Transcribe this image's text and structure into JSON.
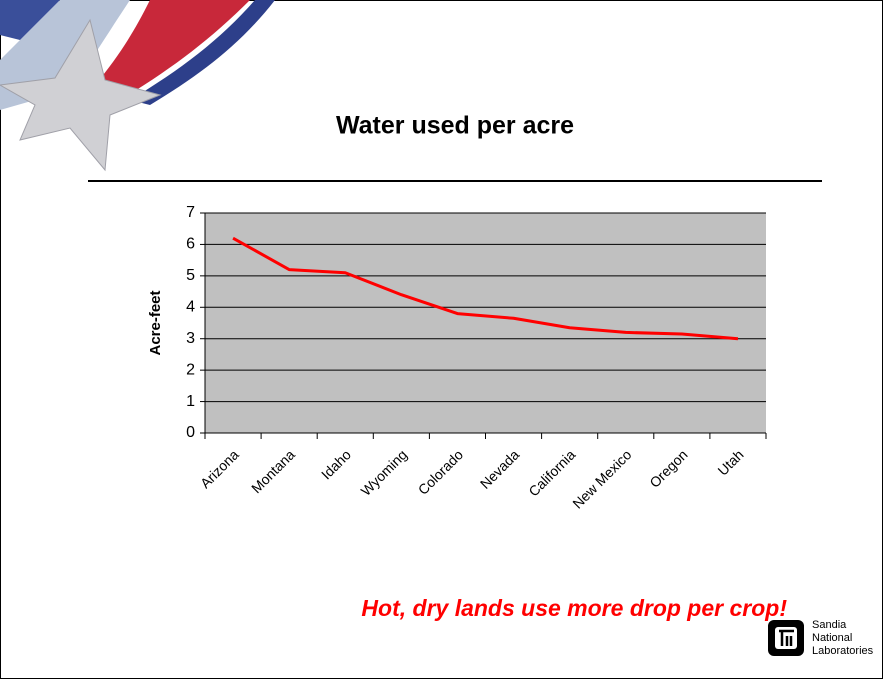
{
  "chart_data": {
    "type": "line",
    "title": "Water used per acre",
    "y_label": "Acre-feet",
    "categories": [
      "Arizona",
      "Montana",
      "Idaho",
      "Wyoming",
      "Colorado",
      "Nevada",
      "California",
      "New Mexico",
      "Oregon",
      "Utah"
    ],
    "values": [
      6.2,
      5.2,
      5.1,
      4.4,
      3.8,
      3.65,
      3.35,
      3.2,
      3.15,
      3.0
    ],
    "color": "#ff0000",
    "ylim": [
      0,
      7
    ],
    "yticks": [
      0,
      1,
      2,
      3,
      4,
      5,
      6,
      7
    ],
    "grid": true
  },
  "caption": "Hot, dry lands use more drop per crop!",
  "logo": [
    "Sandia",
    "National",
    "Laboratories"
  ]
}
